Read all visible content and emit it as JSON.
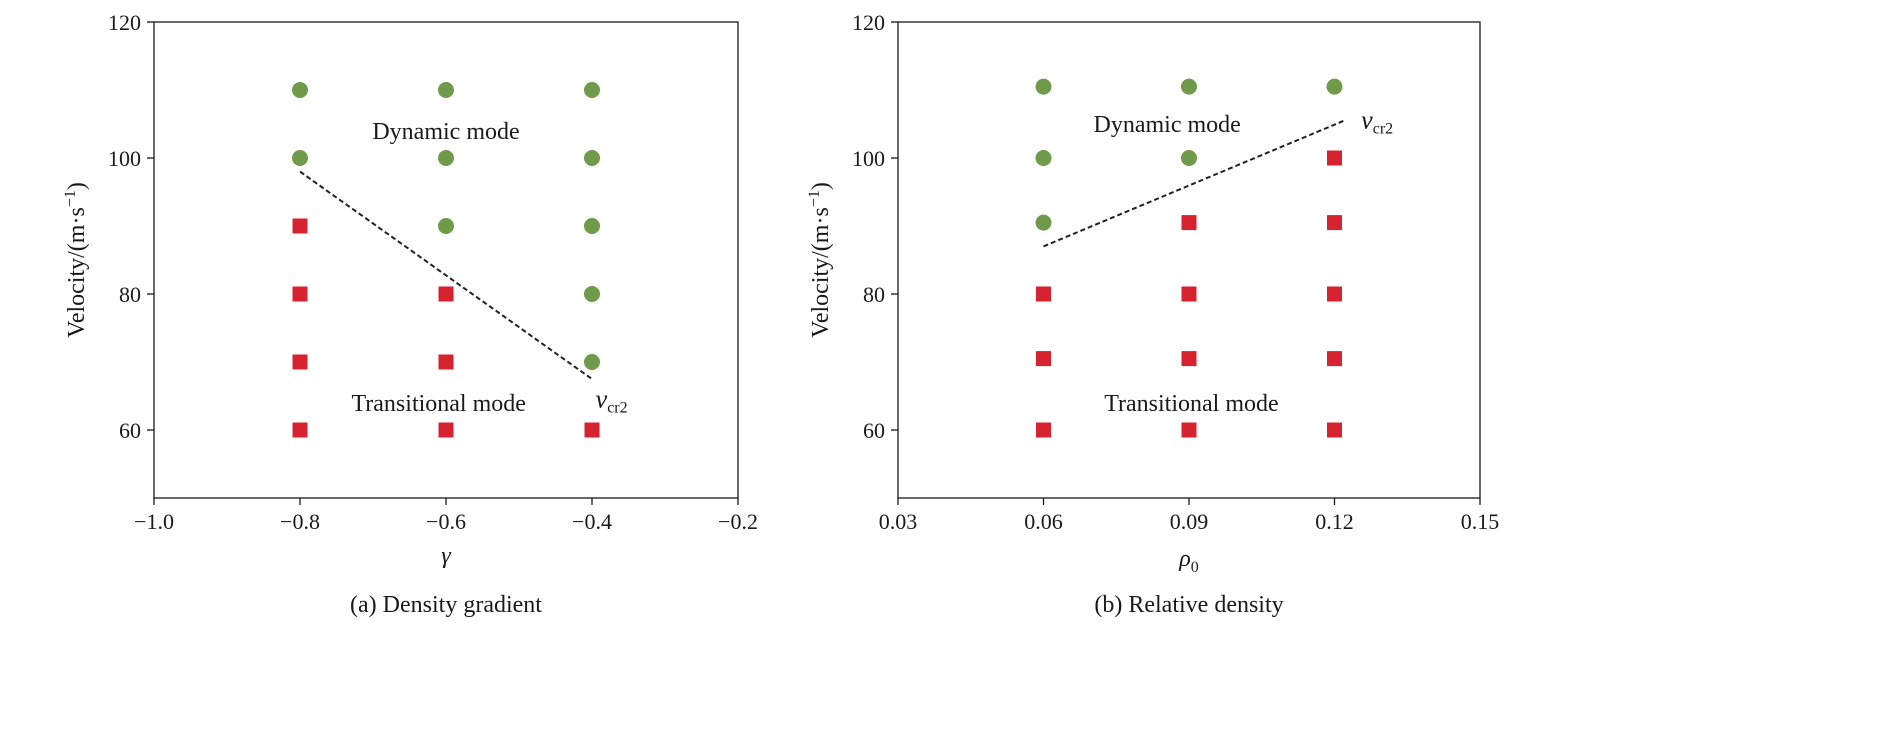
{
  "colors": {
    "dynamic_marker": "#6e9a49",
    "transitional_marker": "#d6232f",
    "axis": "#1a1a1a",
    "boundary_line": "#222222"
  },
  "chart_data": [
    {
      "type": "scatter",
      "caption": "(a) Density gradient",
      "xlabel": "γ",
      "ylabel_main": "Velocity/(m·s",
      "ylabel_exp": "−1",
      "ylabel_close": ")",
      "xlim": [
        -1.0,
        -0.2
      ],
      "ylim": [
        50,
        120
      ],
      "xticks": [
        -1.0,
        -0.8,
        -0.6,
        -0.4,
        -0.2
      ],
      "xtick_labels": [
        "−1.0",
        "−0.8",
        "−0.6",
        "−0.4",
        "−0.2"
      ],
      "yticks": [
        60,
        80,
        100,
        120
      ],
      "ytick_labels": [
        "60",
        "80",
        "100",
        "120"
      ],
      "series": [
        {
          "marker": "circle",
          "points": [
            [
              -0.8,
              110
            ],
            [
              -0.6,
              110
            ],
            [
              -0.4,
              110
            ],
            [
              -0.8,
              100
            ],
            [
              -0.6,
              100
            ],
            [
              -0.4,
              100
            ],
            [
              -0.6,
              90
            ],
            [
              -0.4,
              90
            ],
            [
              -0.4,
              80
            ],
            [
              -0.4,
              70
            ]
          ]
        },
        {
          "marker": "square",
          "points": [
            [
              -0.8,
              90
            ],
            [
              -0.8,
              80
            ],
            [
              -0.6,
              80
            ],
            [
              -0.8,
              70
            ],
            [
              -0.6,
              70
            ],
            [
              -0.8,
              60
            ],
            [
              -0.6,
              60
            ],
            [
              -0.4,
              60
            ]
          ]
        }
      ],
      "boundary": {
        "points": [
          [
            -0.8,
            98
          ],
          [
            -0.4,
            67.5
          ]
        ],
        "label_main": "v",
        "label_sub": "cr2",
        "label_at": [
          -0.395,
          64.5
        ]
      },
      "annotations": [
        {
          "text": "Dynamic mode",
          "at": [
            -0.6,
            104
          ]
        },
        {
          "text": "Transitional mode",
          "at": [
            -0.61,
            64
          ]
        }
      ]
    },
    {
      "type": "scatter",
      "caption": "(b) Relative density",
      "xlabel_main": "ρ",
      "xlabel_sub": "0",
      "ylabel_main": "Velocity/(m·s",
      "ylabel_exp": "−1",
      "ylabel_close": ")",
      "xlim": [
        0.03,
        0.15
      ],
      "ylim": [
        50,
        120
      ],
      "xticks": [
        0.03,
        0.06,
        0.09,
        0.12,
        0.15
      ],
      "xtick_labels": [
        "0.03",
        "0.06",
        "0.09",
        "0.12",
        "0.15"
      ],
      "yticks": [
        60,
        80,
        100,
        120
      ],
      "ytick_labels": [
        "60",
        "80",
        "100",
        "120"
      ],
      "series": [
        {
          "marker": "circle",
          "points": [
            [
              0.06,
              110.5
            ],
            [
              0.09,
              110.5
            ],
            [
              0.12,
              110.5
            ],
            [
              0.06,
              100
            ],
            [
              0.09,
              100
            ],
            [
              0.06,
              90.5
            ]
          ]
        },
        {
          "marker": "square",
          "points": [
            [
              0.12,
              100
            ],
            [
              0.09,
              90.5
            ],
            [
              0.12,
              90.5
            ],
            [
              0.06,
              80
            ],
            [
              0.09,
              80
            ],
            [
              0.12,
              80
            ],
            [
              0.06,
              70.5
            ],
            [
              0.09,
              70.5
            ],
            [
              0.12,
              70.5
            ],
            [
              0.06,
              60
            ],
            [
              0.09,
              60
            ],
            [
              0.12,
              60
            ]
          ]
        }
      ],
      "boundary": {
        "points": [
          [
            0.06,
            87
          ],
          [
            0.122,
            105.5
          ]
        ],
        "label_main": "v",
        "label_sub": "cr2",
        "label_at": [
          0.1255,
          105.5
        ]
      },
      "annotations": [
        {
          "text": "Dynamic mode",
          "at": [
            0.0855,
            105
          ]
        },
        {
          "text": "Transitional mode",
          "at": [
            0.0905,
            64
          ]
        }
      ]
    }
  ]
}
